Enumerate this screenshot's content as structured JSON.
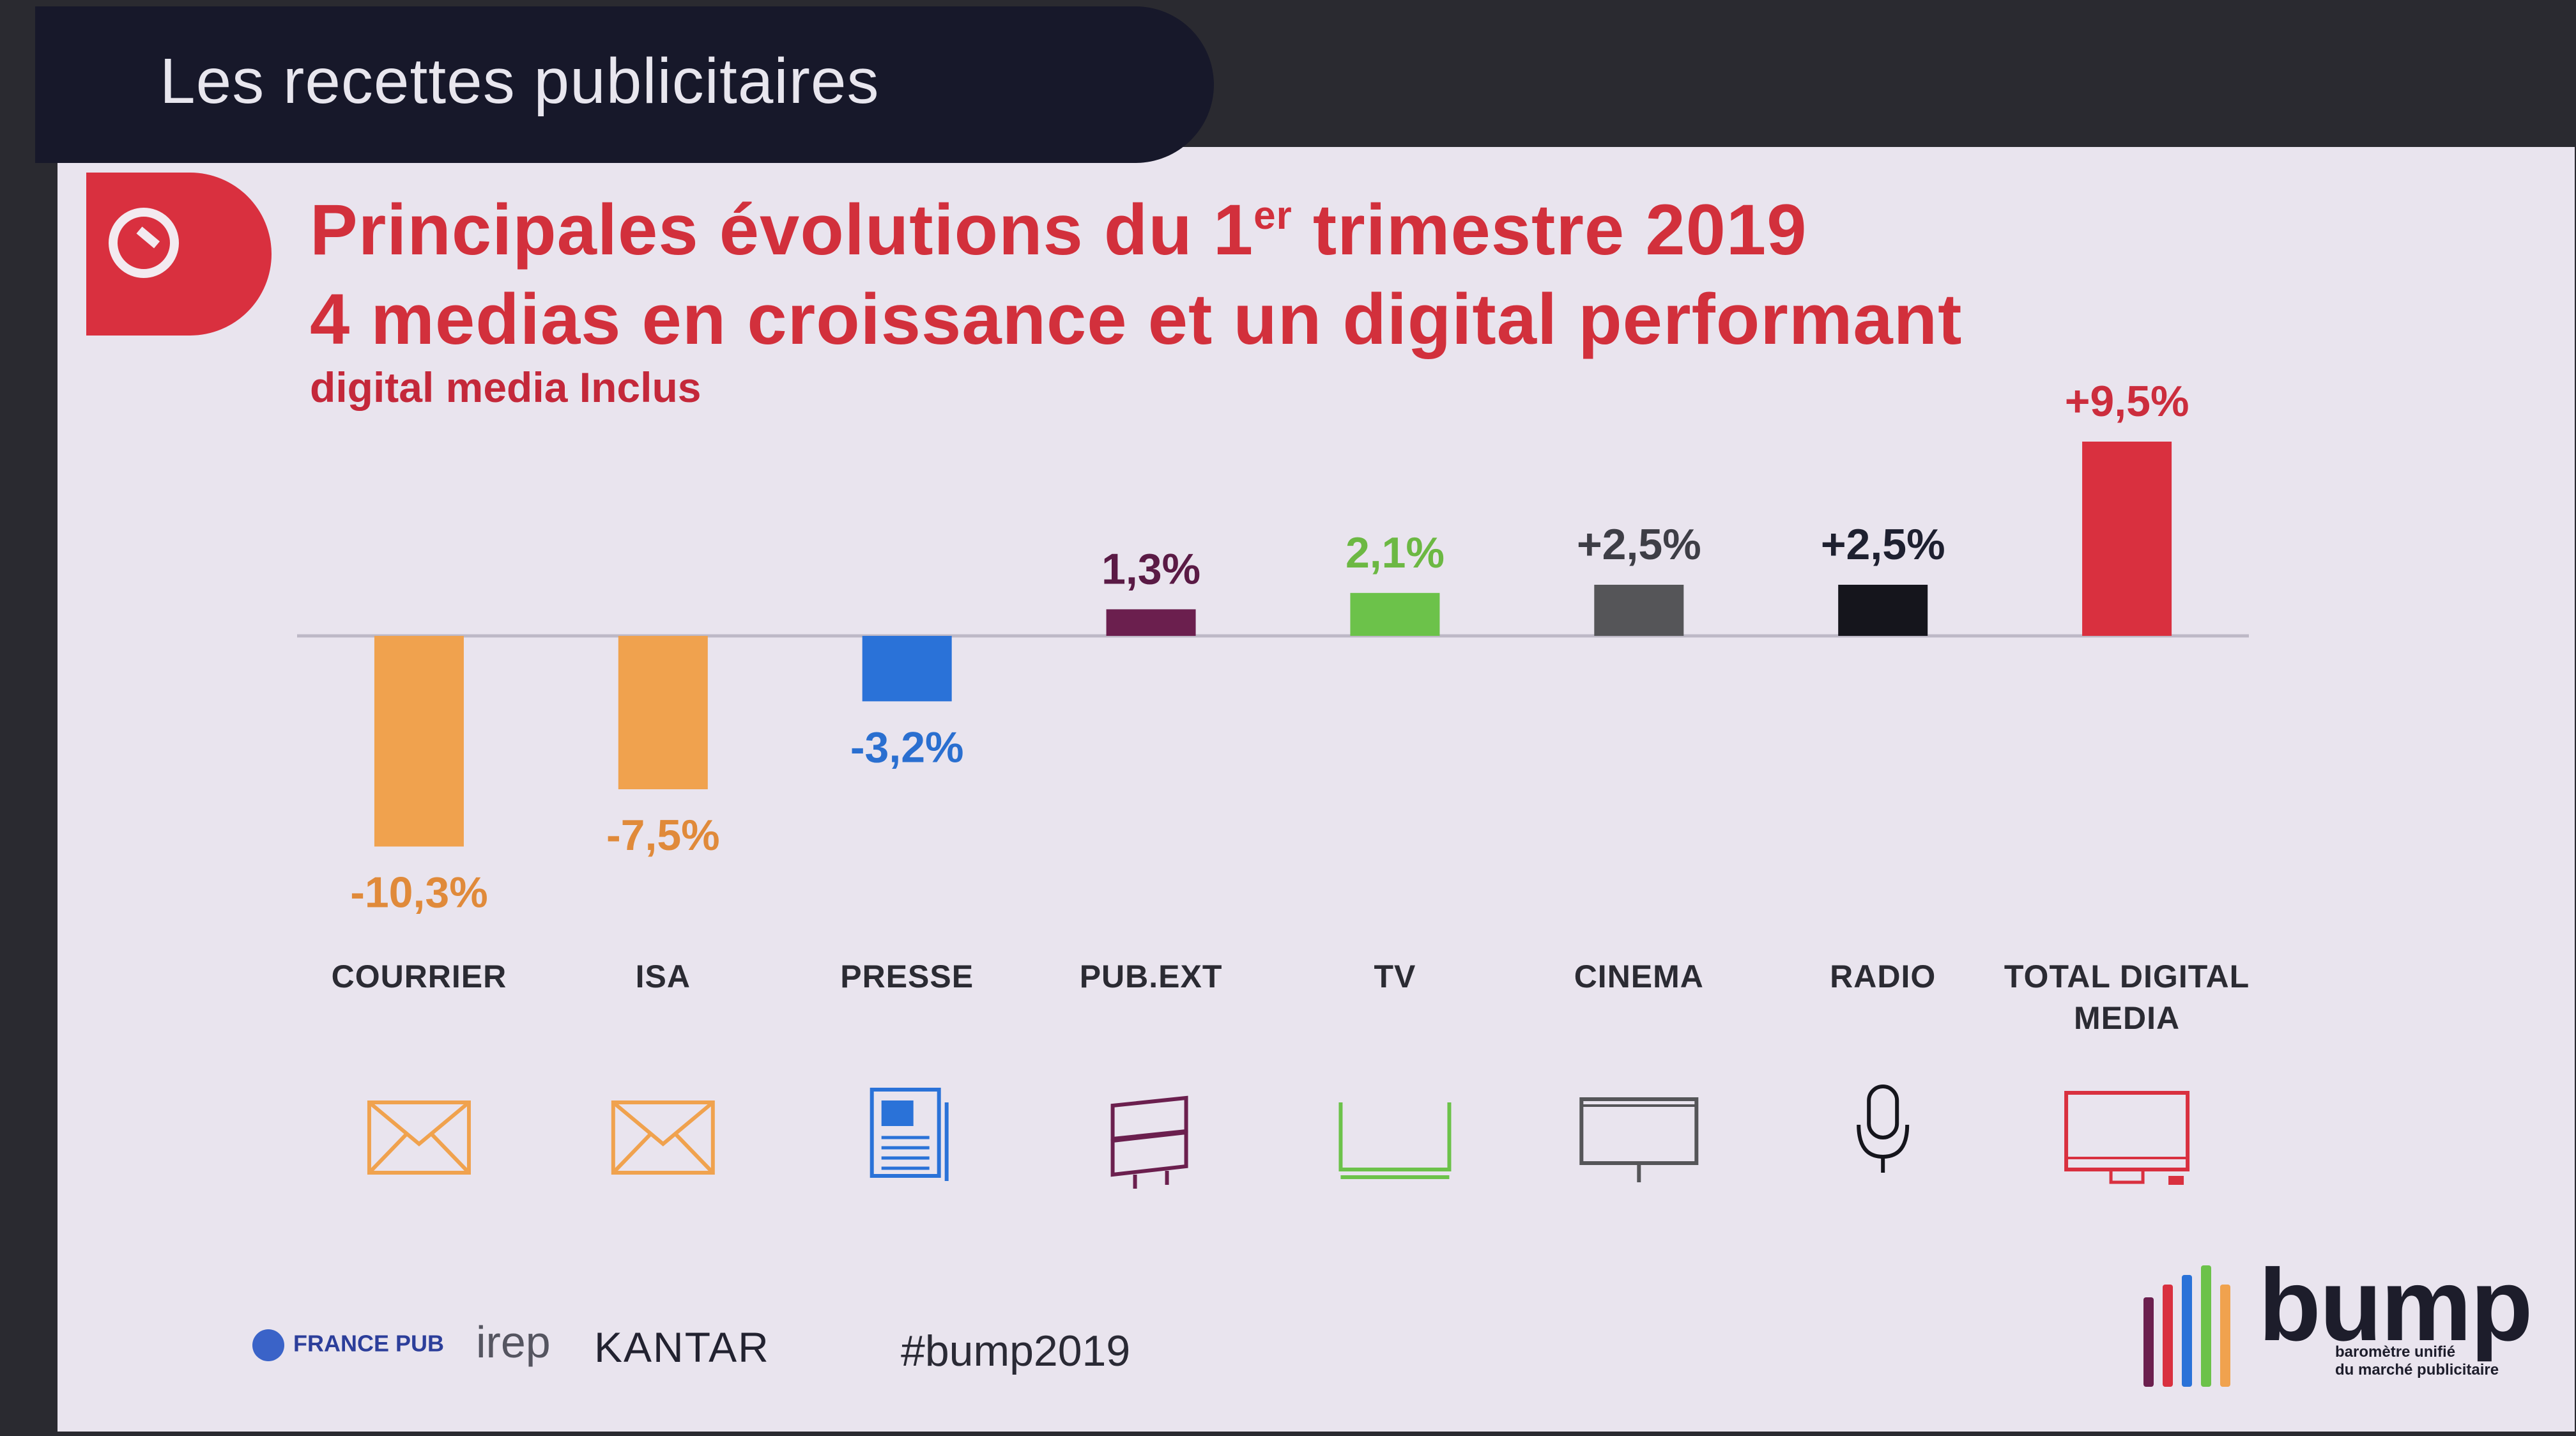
{
  "header": {
    "title": "Les recettes publicitaires"
  },
  "title_line1_a": "Principales évolutions du 1",
  "title_line1_sup": "er",
  "title_line1_b": " trimestre 2019",
  "title_line2": "4 medias en croissance et un digital performant",
  "subtitle": "digital media Inclus",
  "chart_data": {
    "type": "bar",
    "categories": [
      "COURRIER",
      "ISA",
      "PRESSE",
      "PUB.EXT",
      "TV",
      "CINEMA",
      "RADIO",
      "TOTAL DIGITAL MEDIA"
    ],
    "category_lines": [
      [
        "COURRIER"
      ],
      [
        "ISA"
      ],
      [
        "PRESSE"
      ],
      [
        "PUB.EXT"
      ],
      [
        "TV"
      ],
      [
        "CINEMA"
      ],
      [
        "RADIO"
      ],
      [
        "TOTAL DIGITAL",
        "MEDIA"
      ]
    ],
    "values": [
      -10.3,
      -7.5,
      -3.2,
      1.3,
      2.1,
      2.5,
      2.5,
      9.5
    ],
    "value_labels": [
      "-10,3%",
      "-7,5%",
      "-3,2%",
      "1,3%",
      "2,1%",
      "+2,5%",
      "+2,5%",
      "+9,5%"
    ],
    "colors": [
      "#f0a24e",
      "#f0a24e",
      "#2a72d8",
      "#6b1f4e",
      "#6cc24a",
      "#555558",
      "#15151c",
      "#d9303f"
    ],
    "label_colors": [
      "#e08a3a",
      "#e08a3a",
      "#2a6fd0",
      "#5a1a45",
      "#6cb843",
      "#3e3e46",
      "#1e2030",
      "#cc2d3d"
    ],
    "icons": [
      "envelope-icon",
      "envelope-icon",
      "newspaper-icon",
      "billboard-icon",
      "tv-icon",
      "cinema-screen-icon",
      "microphone-icon",
      "monitor-icon"
    ],
    "ylim": [
      -11,
      10
    ],
    "grid": false
  },
  "footer": {
    "francepub": "FRANCE PUB",
    "irep": "irep",
    "kantar": "KANTAR",
    "hashtag": "#bump2019"
  },
  "bump": {
    "word": "bump",
    "tagline1": "baromètre unifié",
    "tagline2": "du marché publicitaire",
    "bar_colors": [
      "#6b1f4e",
      "#d9303f",
      "#2a72d8",
      "#6cc24a",
      "#f0a24e"
    ]
  }
}
